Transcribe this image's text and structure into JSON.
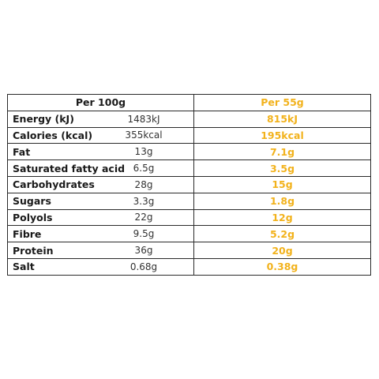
{
  "header": {
    "per_100g": "Per 100g",
    "per_55g": "Per 55g"
  },
  "rows": [
    {
      "name": "Energy (kJ)",
      "per_100g": "1483kJ",
      "per_55g": "815kJ"
    },
    {
      "name": "Calories (kcal)",
      "per_100g": "355kcal",
      "per_55g": "195kcal"
    },
    {
      "name": "Fat",
      "per_100g": "13g",
      "per_55g": "7.1g"
    },
    {
      "name": "Saturated fatty acid",
      "per_100g": "6.5g",
      "per_55g": "3.5g"
    },
    {
      "name": "Carbohydrates",
      "per_100g": "28g",
      "per_55g": "15g"
    },
    {
      "name": "Sugars",
      "per_100g": "3.3g",
      "per_55g": "1.8g"
    },
    {
      "name": "Polyols",
      "per_100g": "22g",
      "per_55g": "12g"
    },
    {
      "name": "Fibre",
      "per_100g": "9.5g",
      "per_55g": "5.2g"
    },
    {
      "name": "Protein",
      "per_100g": "36g",
      "per_55g": "20g"
    },
    {
      "name": "Salt",
      "per_100g": "0.68g",
      "per_55g": "0.38g"
    }
  ],
  "colors": {
    "accent": "#f2b21c",
    "text": "#1a1a1a",
    "border": "#2a2a2a"
  }
}
